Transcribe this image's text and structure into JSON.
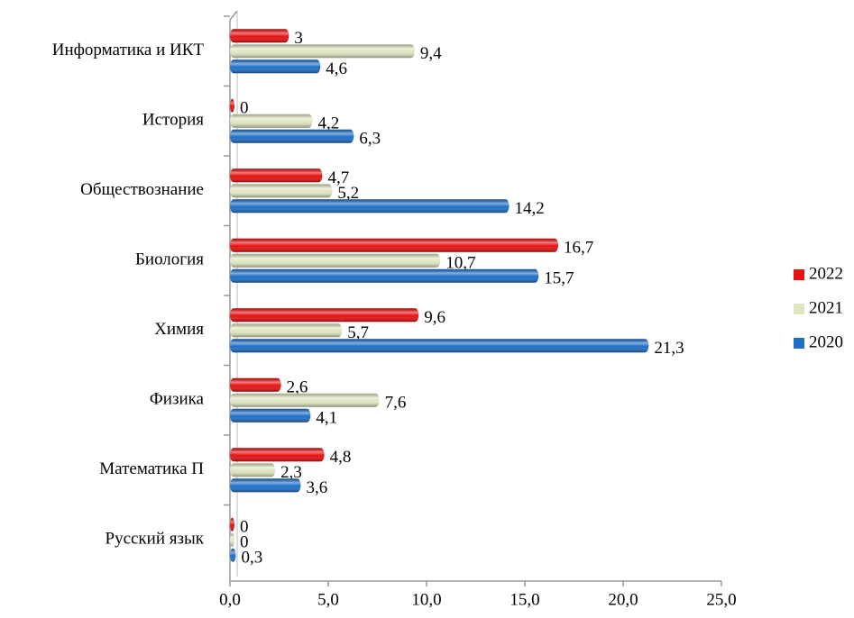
{
  "chart_data": {
    "type": "bar",
    "orientation": "horizontal",
    "categories": [
      "Информатика и ИКТ",
      "История",
      "Обществознание",
      "Биология",
      "Химия",
      "Физика",
      "Математика П",
      "Русский язык"
    ],
    "series": [
      {
        "name": "2022",
        "color": "#e81010",
        "values": [
          3,
          0,
          4.7,
          16.7,
          9.6,
          2.6,
          4.8,
          0
        ],
        "value_labels": [
          "3",
          "0",
          "4,7",
          "16,7",
          "9,6",
          "2,6",
          "4,8",
          "0"
        ]
      },
      {
        "name": "2021",
        "color": "#dfe6c0",
        "values": [
          9.4,
          4.2,
          5.2,
          10.7,
          5.7,
          7.6,
          2.3,
          0
        ],
        "value_labels": [
          "9,4",
          "4,2",
          "5,2",
          "10,7",
          "5,7",
          "7,6",
          "2,3",
          "0"
        ]
      },
      {
        "name": "2020",
        "color": "#1e6fc8",
        "values": [
          4.6,
          6.3,
          14.2,
          15.7,
          21.3,
          4.1,
          3.6,
          0.3
        ],
        "value_labels": [
          "4,6",
          "6,3",
          "14,2",
          "15,7",
          "21,3",
          "4,1",
          "3,6",
          "0,3"
        ]
      }
    ],
    "xlim": [
      0,
      25
    ],
    "xticks": [
      {
        "value": 0,
        "label": "0,0"
      },
      {
        "value": 5,
        "label": "5,0"
      },
      {
        "value": 10,
        "label": "10,0"
      },
      {
        "value": 15,
        "label": "15,0"
      },
      {
        "value": 20,
        "label": "20,0"
      },
      {
        "value": 25,
        "label": "25,0"
      }
    ],
    "legend": "right"
  }
}
